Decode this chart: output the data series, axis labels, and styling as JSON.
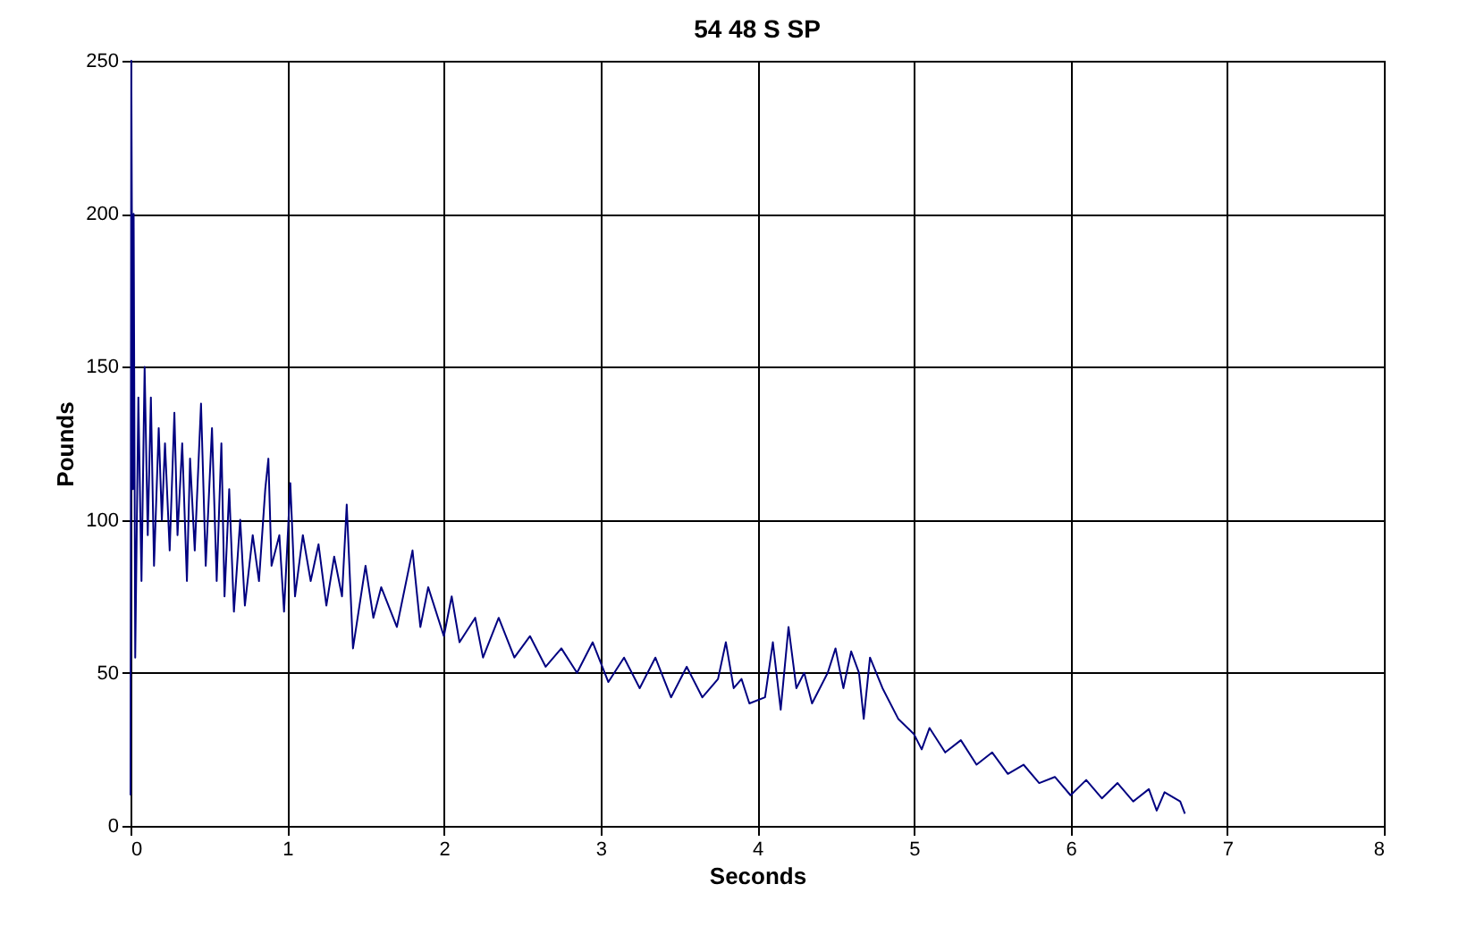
{
  "chart_data": {
    "type": "line",
    "title": "54 48 S SP",
    "xlabel": "Seconds",
    "ylabel": "Pounds",
    "xlim": [
      0,
      8
    ],
    "xticks": [
      0,
      1,
      2,
      3,
      4,
      5,
      6,
      7,
      8
    ],
    "ylim": [
      0,
      250
    ],
    "yticks": [
      0,
      50,
      100,
      150,
      200,
      250
    ],
    "grid": true,
    "series": [
      {
        "color": "#000080",
        "x": [
          0,
          0.005,
          0.015,
          0.02,
          0.03,
          0.05,
          0.07,
          0.09,
          0.11,
          0.13,
          0.15,
          0.18,
          0.2,
          0.22,
          0.25,
          0.28,
          0.3,
          0.33,
          0.36,
          0.38,
          0.41,
          0.45,
          0.48,
          0.52,
          0.55,
          0.58,
          0.6,
          0.63,
          0.66,
          0.7,
          0.73,
          0.78,
          0.82,
          0.86,
          0.88,
          0.9,
          0.95,
          0.98,
          1.02,
          1.05,
          1.1,
          1.15,
          1.2,
          1.25,
          1.3,
          1.35,
          1.38,
          1.42,
          1.5,
          1.55,
          1.6,
          1.7,
          1.8,
          1.85,
          1.9,
          2.0,
          2.05,
          2.1,
          2.2,
          2.25,
          2.35,
          2.45,
          2.55,
          2.65,
          2.75,
          2.85,
          2.95,
          3.05,
          3.15,
          3.25,
          3.35,
          3.45,
          3.55,
          3.65,
          3.75,
          3.8,
          3.85,
          3.9,
          3.95,
          4.05,
          4.1,
          4.15,
          4.2,
          4.25,
          4.3,
          4.35,
          4.45,
          4.5,
          4.55,
          4.6,
          4.65,
          4.68,
          4.72,
          4.8,
          4.9,
          5.0,
          5.05,
          5.1,
          5.2,
          5.3,
          5.4,
          5.5,
          5.6,
          5.7,
          5.8,
          5.9,
          6.0,
          6.1,
          6.2,
          6.3,
          6.4,
          6.5,
          6.55,
          6.6,
          6.7,
          6.73
        ],
        "values": [
          10,
          250,
          110,
          200,
          55,
          140,
          80,
          150,
          95,
          140,
          85,
          130,
          100,
          125,
          90,
          135,
          95,
          125,
          80,
          120,
          90,
          138,
          85,
          130,
          80,
          125,
          75,
          110,
          70,
          100,
          72,
          95,
          80,
          110,
          120,
          85,
          95,
          70,
          112,
          75,
          95,
          80,
          92,
          72,
          88,
          75,
          105,
          58,
          85,
          68,
          78,
          65,
          90,
          65,
          78,
          62,
          75,
          60,
          68,
          55,
          68,
          55,
          62,
          52,
          58,
          50,
          60,
          47,
          55,
          45,
          55,
          42,
          52,
          42,
          48,
          60,
          45,
          48,
          40,
          42,
          60,
          38,
          65,
          45,
          50,
          40,
          50,
          58,
          45,
          57,
          50,
          35,
          55,
          45,
          35,
          30,
          25,
          32,
          24,
          28,
          20,
          24,
          17,
          20,
          14,
          16,
          10,
          15,
          9,
          14,
          8,
          12,
          5,
          11,
          8,
          4
        ]
      }
    ]
  }
}
